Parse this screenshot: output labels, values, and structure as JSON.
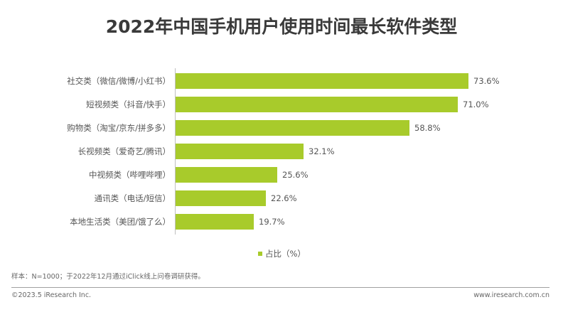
{
  "title": "2022年中国手机用户使用时间最长软件类型",
  "chart_data": {
    "type": "bar",
    "orientation": "horizontal",
    "title": "2022年中国手机用户使用时间最长软件类型",
    "categories": [
      "社交类（微信/微博/小红书）",
      "短视频类（抖音/快手）",
      "购物类（淘宝/京东/拼多多）",
      "长视频类（爱奇艺/腾讯）",
      "中视频类（哔哩哔哩）",
      "通讯类（电话/短信）",
      "本地生活类（美团/饿了么）"
    ],
    "series": [
      {
        "name": "占比（%）",
        "values": [
          73.6,
          71.0,
          58.8,
          32.1,
          25.6,
          22.6,
          19.7
        ],
        "color": "#a8cb2b"
      }
    ],
    "value_labels": [
      "73.6%",
      "71.0%",
      "58.8%",
      "32.1%",
      "25.6%",
      "22.6%",
      "19.7%"
    ],
    "xlabel": "",
    "ylabel": "",
    "xlim": [
      0,
      80
    ],
    "grid": false,
    "legend_position": "bottom"
  },
  "legend": {
    "label": "占比（%）",
    "color": "#a8cb2b"
  },
  "footer": {
    "note": "样本：N=1000；于2022年12月通过iClick线上问卷调研获得。",
    "copyright": "©2023.5 iResearch Inc.",
    "website": "www.iresearch.com.cn"
  }
}
